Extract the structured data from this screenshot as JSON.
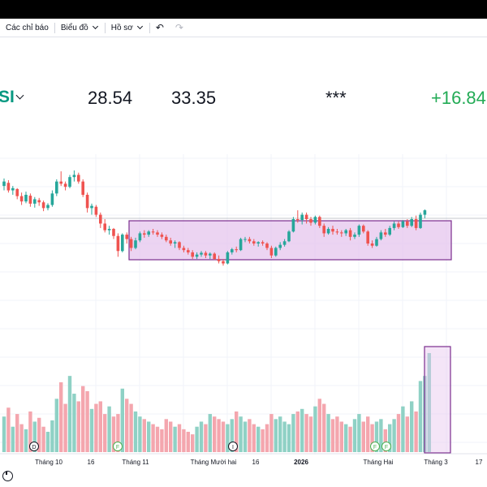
{
  "toolbar": {
    "indicators_label": "Các chỉ báo",
    "chart_label": "Biểu đồ",
    "profile_label": "Hồ sơ",
    "undo_icon": "undo-icon",
    "redo_icon": "redo-icon"
  },
  "header": {
    "ticker": "SI",
    "stat1": "28.54",
    "stat2": "33.35",
    "stat3": "***",
    "change": "+16.84"
  },
  "colors": {
    "up": "#26a69a",
    "down": "#ef5350",
    "vol_up": "#8fd1c5",
    "vol_down": "#f4a6ae",
    "highlight_fill": "#e6c6ee",
    "highlight_stroke": "#7b2d8e"
  },
  "chart_data": {
    "type": "candlestick",
    "x_labels": [
      "Tháng 10",
      "16",
      "Tháng 11",
      "Tháng Mười hai",
      "16",
      "2026",
      "Tháng Hai",
      "Tháng 3",
      "17"
    ],
    "event_markers": [
      "D",
      "F",
      "I",
      "F",
      "F"
    ],
    "candles": [
      {
        "o": 42.5,
        "h": 44.2,
        "l": 41.5,
        "c": 43.5
      },
      {
        "o": 43.2,
        "h": 43.8,
        "l": 41.0,
        "c": 41.5
      },
      {
        "o": 41.5,
        "h": 42.5,
        "l": 40.5,
        "c": 42.0
      },
      {
        "o": 41.8,
        "h": 42.0,
        "l": 39.5,
        "c": 40.2
      },
      {
        "o": 40.2,
        "h": 41.0,
        "l": 38.2,
        "c": 39.0
      },
      {
        "o": 39.0,
        "h": 41.2,
        "l": 38.6,
        "c": 40.5
      },
      {
        "o": 40.3,
        "h": 40.8,
        "l": 37.8,
        "c": 38.5
      },
      {
        "o": 38.5,
        "h": 40.0,
        "l": 37.6,
        "c": 39.5
      },
      {
        "o": 39.3,
        "h": 39.8,
        "l": 38.0,
        "c": 38.8
      },
      {
        "o": 38.8,
        "h": 39.2,
        "l": 36.8,
        "c": 37.5
      },
      {
        "o": 37.5,
        "h": 38.6,
        "l": 37.0,
        "c": 38.2
      },
      {
        "o": 38.2,
        "h": 41.5,
        "l": 37.8,
        "c": 40.8
      },
      {
        "o": 40.8,
        "h": 44.0,
        "l": 40.2,
        "c": 43.5
      },
      {
        "o": 43.5,
        "h": 45.8,
        "l": 42.5,
        "c": 43.0
      },
      {
        "o": 43.0,
        "h": 43.5,
        "l": 41.5,
        "c": 42.3
      },
      {
        "o": 42.3,
        "h": 45.0,
        "l": 42.0,
        "c": 44.5
      },
      {
        "o": 44.5,
        "h": 46.0,
        "l": 43.5,
        "c": 45.0
      },
      {
        "o": 45.0,
        "h": 45.5,
        "l": 43.0,
        "c": 43.5
      },
      {
        "o": 43.5,
        "h": 44.0,
        "l": 40.0,
        "c": 40.5
      },
      {
        "o": 40.5,
        "h": 41.0,
        "l": 36.5,
        "c": 37.5
      },
      {
        "o": 37.5,
        "h": 38.5,
        "l": 36.0,
        "c": 38.0
      },
      {
        "o": 37.8,
        "h": 38.2,
        "l": 35.5,
        "c": 36.0
      },
      {
        "o": 36.0,
        "h": 36.5,
        "l": 33.0,
        "c": 34.0
      },
      {
        "o": 34.0,
        "h": 35.0,
        "l": 32.0,
        "c": 32.5
      },
      {
        "o": 32.5,
        "h": 33.5,
        "l": 31.5,
        "c": 32.8
      },
      {
        "o": 32.8,
        "h": 33.0,
        "l": 30.5,
        "c": 31.2
      },
      {
        "o": 31.2,
        "h": 31.8,
        "l": 26.5,
        "c": 27.8
      },
      {
        "o": 27.8,
        "h": 31.8,
        "l": 27.5,
        "c": 31.5
      },
      {
        "o": 31.5,
        "h": 32.0,
        "l": 29.5,
        "c": 30.5
      },
      {
        "o": 30.5,
        "h": 31.0,
        "l": 27.8,
        "c": 28.5
      },
      {
        "o": 28.5,
        "h": 30.8,
        "l": 28.2,
        "c": 30.2
      },
      {
        "o": 30.2,
        "h": 32.2,
        "l": 29.8,
        "c": 31.8
      },
      {
        "o": 31.8,
        "h": 32.5,
        "l": 30.8,
        "c": 31.5
      },
      {
        "o": 31.5,
        "h": 32.5,
        "l": 31.0,
        "c": 32.2
      },
      {
        "o": 32.2,
        "h": 32.8,
        "l": 31.5,
        "c": 32.0
      },
      {
        "o": 32.0,
        "h": 32.5,
        "l": 31.0,
        "c": 31.5
      },
      {
        "o": 31.5,
        "h": 32.0,
        "l": 30.5,
        "c": 31.0
      },
      {
        "o": 31.0,
        "h": 31.5,
        "l": 29.8,
        "c": 30.2
      },
      {
        "o": 30.2,
        "h": 30.8,
        "l": 29.0,
        "c": 29.5
      },
      {
        "o": 29.5,
        "h": 30.2,
        "l": 28.5,
        "c": 29.8
      },
      {
        "o": 29.8,
        "h": 30.0,
        "l": 28.0,
        "c": 28.5
      },
      {
        "o": 28.5,
        "h": 29.0,
        "l": 27.5,
        "c": 28.0
      },
      {
        "o": 28.0,
        "h": 28.5,
        "l": 27.0,
        "c": 27.5
      },
      {
        "o": 27.5,
        "h": 28.0,
        "l": 26.0,
        "c": 26.5
      },
      {
        "o": 26.5,
        "h": 27.5,
        "l": 26.0,
        "c": 27.0
      },
      {
        "o": 27.0,
        "h": 27.8,
        "l": 26.5,
        "c": 27.4
      },
      {
        "o": 27.4,
        "h": 27.8,
        "l": 26.2,
        "c": 26.8
      },
      {
        "o": 26.8,
        "h": 27.5,
        "l": 26.0,
        "c": 27.2
      },
      {
        "o": 27.2,
        "h": 27.5,
        "l": 25.8,
        "c": 26.0
      },
      {
        "o": 26.0,
        "h": 26.8,
        "l": 25.0,
        "c": 25.5
      },
      {
        "o": 25.5,
        "h": 26.0,
        "l": 24.5,
        "c": 25.0
      },
      {
        "o": 25.0,
        "h": 27.8,
        "l": 24.8,
        "c": 27.5
      },
      {
        "o": 27.5,
        "h": 28.5,
        "l": 27.0,
        "c": 28.2
      },
      {
        "o": 28.2,
        "h": 28.8,
        "l": 27.5,
        "c": 28.0
      },
      {
        "o": 28.0,
        "h": 30.8,
        "l": 27.8,
        "c": 30.5
      },
      {
        "o": 30.5,
        "h": 31.0,
        "l": 29.8,
        "c": 30.5
      },
      {
        "o": 30.5,
        "h": 31.0,
        "l": 29.5,
        "c": 30.0
      },
      {
        "o": 30.0,
        "h": 30.5,
        "l": 29.0,
        "c": 29.5
      },
      {
        "o": 29.5,
        "h": 30.0,
        "l": 28.8,
        "c": 29.8
      },
      {
        "o": 29.8,
        "h": 30.2,
        "l": 29.0,
        "c": 29.5
      },
      {
        "o": 29.5,
        "h": 29.8,
        "l": 28.0,
        "c": 28.5
      },
      {
        "o": 28.5,
        "h": 29.0,
        "l": 26.2,
        "c": 26.8
      },
      {
        "o": 26.8,
        "h": 28.8,
        "l": 26.5,
        "c": 28.5
      },
      {
        "o": 28.5,
        "h": 29.8,
        "l": 28.0,
        "c": 29.2
      },
      {
        "o": 29.2,
        "h": 30.5,
        "l": 28.8,
        "c": 30.0
      },
      {
        "o": 30.0,
        "h": 32.5,
        "l": 29.8,
        "c": 32.2
      },
      {
        "o": 32.2,
        "h": 35.5,
        "l": 32.0,
        "c": 35.0
      },
      {
        "o": 35.0,
        "h": 37.0,
        "l": 34.2,
        "c": 34.8
      },
      {
        "o": 34.8,
        "h": 36.5,
        "l": 33.8,
        "c": 36.0
      },
      {
        "o": 36.0,
        "h": 36.5,
        "l": 34.0,
        "c": 35.0
      },
      {
        "o": 35.0,
        "h": 35.5,
        "l": 33.5,
        "c": 34.2
      },
      {
        "o": 34.2,
        "h": 35.8,
        "l": 33.8,
        "c": 35.5
      },
      {
        "o": 35.5,
        "h": 35.8,
        "l": 33.0,
        "c": 33.5
      },
      {
        "o": 33.5,
        "h": 34.0,
        "l": 31.0,
        "c": 31.8
      },
      {
        "o": 31.8,
        "h": 33.2,
        "l": 31.5,
        "c": 32.8
      },
      {
        "o": 32.8,
        "h": 33.5,
        "l": 31.5,
        "c": 32.2
      },
      {
        "o": 32.2,
        "h": 32.8,
        "l": 31.5,
        "c": 32.0
      },
      {
        "o": 32.0,
        "h": 32.5,
        "l": 31.0,
        "c": 31.8
      },
      {
        "o": 31.8,
        "h": 32.8,
        "l": 31.2,
        "c": 32.5
      },
      {
        "o": 32.5,
        "h": 33.0,
        "l": 30.2,
        "c": 31.0
      },
      {
        "o": 31.0,
        "h": 32.0,
        "l": 30.5,
        "c": 31.5
      },
      {
        "o": 31.5,
        "h": 33.8,
        "l": 31.0,
        "c": 33.5
      },
      {
        "o": 33.5,
        "h": 33.8,
        "l": 31.8,
        "c": 32.2
      },
      {
        "o": 32.2,
        "h": 32.5,
        "l": 29.0,
        "c": 29.5
      },
      {
        "o": 29.5,
        "h": 30.2,
        "l": 28.5,
        "c": 29.0
      },
      {
        "o": 29.0,
        "h": 31.0,
        "l": 28.8,
        "c": 30.5
      },
      {
        "o": 30.5,
        "h": 32.5,
        "l": 30.2,
        "c": 32.0
      },
      {
        "o": 32.0,
        "h": 32.8,
        "l": 31.0,
        "c": 31.5
      },
      {
        "o": 31.5,
        "h": 33.5,
        "l": 31.2,
        "c": 33.0
      },
      {
        "o": 33.0,
        "h": 34.5,
        "l": 32.5,
        "c": 34.0
      },
      {
        "o": 34.0,
        "h": 34.5,
        "l": 32.8,
        "c": 33.2
      },
      {
        "o": 33.2,
        "h": 34.8,
        "l": 33.0,
        "c": 34.5
      },
      {
        "o": 34.5,
        "h": 35.0,
        "l": 33.0,
        "c": 33.5
      },
      {
        "o": 33.5,
        "h": 35.5,
        "l": 33.2,
        "c": 35.0
      },
      {
        "o": 35.0,
        "h": 35.8,
        "l": 32.5,
        "c": 33.0
      },
      {
        "o": 33.0,
        "h": 36.5,
        "l": 32.8,
        "c": 36.0
      },
      {
        "o": 36.0,
        "h": 37.2,
        "l": 35.2,
        "c": 37.0
      }
    ],
    "volume": [
      28,
      35,
      20,
      30,
      22,
      18,
      32,
      24,
      27,
      20,
      16,
      25,
      42,
      55,
      38,
      60,
      46,
      40,
      52,
      48,
      34,
      38,
      40,
      30,
      36,
      28,
      30,
      50,
      42,
      38,
      32,
      28,
      26,
      24,
      22,
      20,
      18,
      26,
      24,
      20,
      22,
      18,
      16,
      14,
      20,
      24,
      22,
      30,
      28,
      26,
      24,
      22,
      26,
      32,
      28,
      24,
      26,
      22,
      20,
      18,
      22,
      30,
      26,
      28,
      24,
      22,
      30,
      32,
      34,
      30,
      28,
      36,
      42,
      38,
      30,
      26,
      28,
      24,
      22,
      20,
      26,
      30,
      24,
      28,
      22,
      24,
      26,
      18,
      22,
      26,
      30,
      36,
      28,
      40,
      32,
      56,
      60,
      78
    ]
  }
}
